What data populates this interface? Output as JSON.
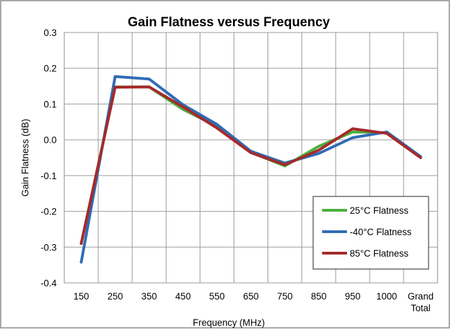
{
  "chart_data": {
    "type": "line",
    "title": "Gain Flatness versus Frequency",
    "xlabel": "Frequency (MHz)",
    "ylabel": "Gain Flatness (dB)",
    "categories": [
      "150",
      "250",
      "350",
      "450",
      "550",
      "650",
      "750",
      "850",
      "950",
      "1000",
      "Grand Total"
    ],
    "ylim": [
      -0.4,
      0.3
    ],
    "yticks": [
      "0.3",
      "0.2",
      "0.1",
      "0.0",
      "-0.1",
      "-0.2",
      "-0.3",
      "-0.4"
    ],
    "grid": true,
    "legend_position": "bottom-right",
    "series": [
      {
        "name": "25°C Flatness",
        "color": "#4caf3f",
        "values": [
          -0.29,
          0.148,
          0.148,
          0.085,
          0.038,
          -0.035,
          -0.073,
          -0.018,
          0.022,
          0.02,
          -0.048
        ]
      },
      {
        "name": "-40°C Flatness",
        "color": "#2f6cb5",
        "values": [
          -0.342,
          0.177,
          0.17,
          0.098,
          0.043,
          -0.032,
          -0.065,
          -0.038,
          0.006,
          0.022,
          -0.047
        ]
      },
      {
        "name": "85°C Flatness",
        "color": "#a52a2a",
        "values": [
          -0.29,
          0.147,
          0.148,
          0.092,
          0.033,
          -0.036,
          -0.07,
          -0.029,
          0.031,
          0.018,
          -0.05
        ]
      }
    ]
  }
}
